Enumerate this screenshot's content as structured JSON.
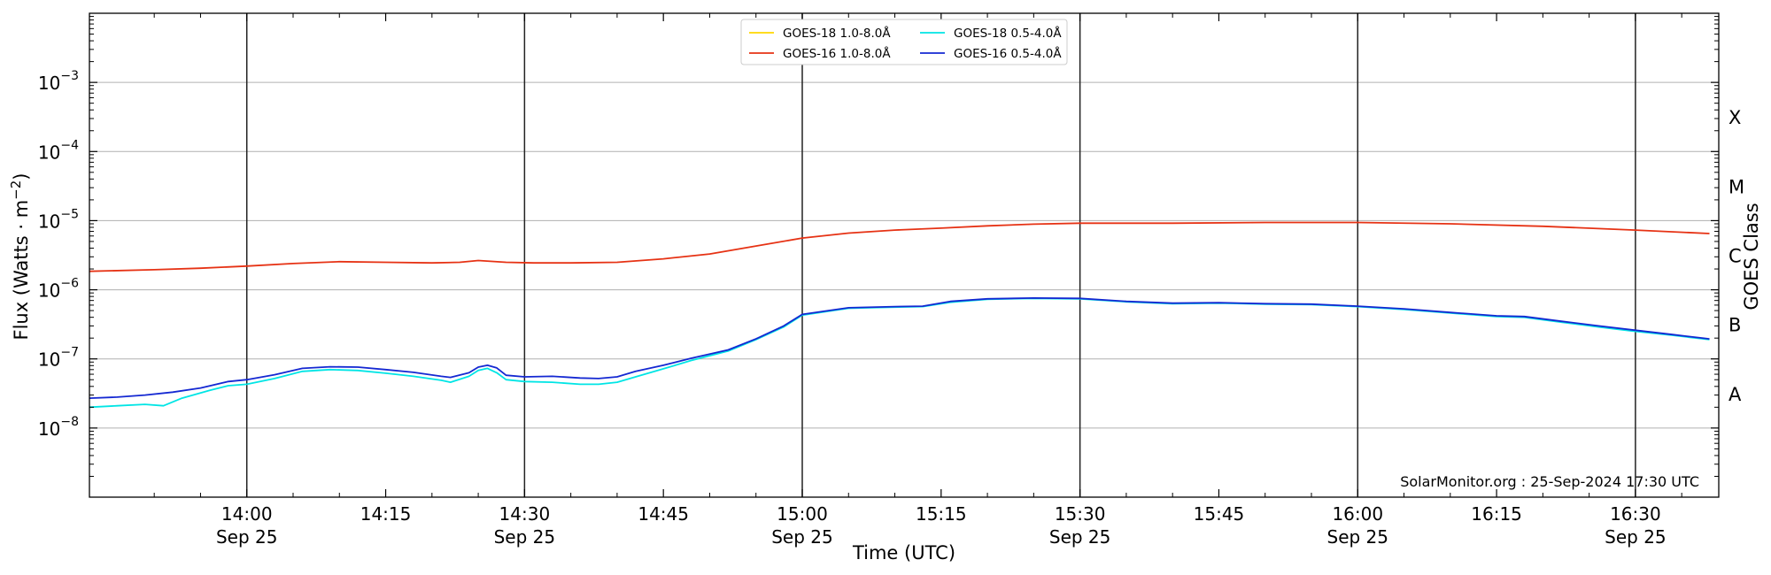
{
  "chart_data": {
    "type": "line",
    "title": "",
    "xlabel": "Time (UTC)",
    "ylabel": "Flux (Watts · m",
    "ylabel_sup": "−2",
    "ylabel_end": ")",
    "right_label": "GOES Class",
    "watermark": "SolarMonitor.org : 25-Sep-2024 17:30 UTC",
    "yscale": "log",
    "ylim": [
      1e-09,
      0.01
    ],
    "xlim_minutes_utc": [
      "13:43",
      "16:39"
    ],
    "grid": "horizontal",
    "legend_placement": "upper-center",
    "y_ticks": [
      {
        "value": 1e-08,
        "base": "10",
        "exp": "−8"
      },
      {
        "value": 1e-07,
        "base": "10",
        "exp": "−7"
      },
      {
        "value": 1e-06,
        "base": "10",
        "exp": "−6"
      },
      {
        "value": 1e-05,
        "base": "10",
        "exp": "−5"
      },
      {
        "value": 0.0001,
        "base": "10",
        "exp": "−4"
      },
      {
        "value": 0.001,
        "base": "10",
        "exp": "−3"
      }
    ],
    "x_ticks": [
      {
        "time": "14:00",
        "date": "Sep 25"
      },
      {
        "time": "14:15",
        "date": ""
      },
      {
        "time": "14:30",
        "date": "Sep 25"
      },
      {
        "time": "14:45",
        "date": ""
      },
      {
        "time": "15:00",
        "date": "Sep 25"
      },
      {
        "time": "15:15",
        "date": ""
      },
      {
        "time": "15:30",
        "date": "Sep 25"
      },
      {
        "time": "15:45",
        "date": ""
      },
      {
        "time": "16:00",
        "date": "Sep 25"
      },
      {
        "time": "16:15",
        "date": ""
      },
      {
        "time": "16:30",
        "date": "Sep 25"
      }
    ],
    "vlines": [
      "14:00",
      "14:30",
      "15:00",
      "15:30",
      "16:00",
      "16:30"
    ],
    "goes_classes": [
      {
        "label": "A",
        "value": 3.16e-08
      },
      {
        "label": "B",
        "value": 3.16e-07
      },
      {
        "label": "C",
        "value": 3.16e-06
      },
      {
        "label": "M",
        "value": 3.16e-05
      },
      {
        "label": "X",
        "value": 0.000316
      }
    ],
    "series": [
      {
        "name": "GOES-18 1.0-8.0Å",
        "color": "#ffd700",
        "legend_col": 0,
        "legend_row": 0,
        "points": []
      },
      {
        "name": "GOES-16 1.0-8.0Å",
        "color": "#e63214",
        "legend_col": 0,
        "legend_row": 1,
        "points": [
          [
            "13:43",
            1.85e-06
          ],
          [
            "13:50",
            1.95e-06
          ],
          [
            "13:55",
            2.05e-06
          ],
          [
            "14:00",
            2.2e-06
          ],
          [
            "14:05",
            2.4e-06
          ],
          [
            "14:10",
            2.55e-06
          ],
          [
            "14:15",
            2.5e-06
          ],
          [
            "14:20",
            2.45e-06
          ],
          [
            "14:23",
            2.5e-06
          ],
          [
            "14:25",
            2.65e-06
          ],
          [
            "14:28",
            2.5e-06
          ],
          [
            "14:31",
            2.45e-06
          ],
          [
            "14:35",
            2.45e-06
          ],
          [
            "14:40",
            2.5e-06
          ],
          [
            "14:45",
            2.8e-06
          ],
          [
            "14:50",
            3.3e-06
          ],
          [
            "14:55",
            4.3e-06
          ],
          [
            "15:00",
            5.6e-06
          ],
          [
            "15:05",
            6.6e-06
          ],
          [
            "15:10",
            7.3e-06
          ],
          [
            "15:15",
            7.8e-06
          ],
          [
            "15:20",
            8.4e-06
          ],
          [
            "15:25",
            8.9e-06
          ],
          [
            "15:30",
            9.2e-06
          ],
          [
            "15:40",
            9.2e-06
          ],
          [
            "15:50",
            9.4e-06
          ],
          [
            "16:00",
            9.4e-06
          ],
          [
            "16:10",
            9e-06
          ],
          [
            "16:20",
            8.3e-06
          ],
          [
            "16:30",
            7.3e-06
          ],
          [
            "16:38",
            6.5e-06
          ]
        ]
      },
      {
        "name": "GOES-18 0.5-4.0Å",
        "color": "#00e5e5",
        "legend_col": 1,
        "legend_row": 0,
        "points": [
          [
            "13:43",
            2e-08
          ],
          [
            "13:46",
            2.1e-08
          ],
          [
            "13:49",
            2.2e-08
          ],
          [
            "13:51",
            2.1e-08
          ],
          [
            "13:53",
            2.7e-08
          ],
          [
            "13:56",
            3.5e-08
          ],
          [
            "13:58",
            4.1e-08
          ],
          [
            "14:00",
            4.3e-08
          ],
          [
            "14:03",
            5.2e-08
          ],
          [
            "14:06",
            6.6e-08
          ],
          [
            "14:09",
            7e-08
          ],
          [
            "14:12",
            6.8e-08
          ],
          [
            "14:15",
            6.2e-08
          ],
          [
            "14:18",
            5.6e-08
          ],
          [
            "14:21",
            4.9e-08
          ],
          [
            "14:22",
            4.6e-08
          ],
          [
            "14:24",
            5.6e-08
          ],
          [
            "14:25",
            6.8e-08
          ],
          [
            "14:26",
            7.3e-08
          ],
          [
            "14:27",
            6.3e-08
          ],
          [
            "14:28",
            5e-08
          ],
          [
            "14:30",
            4.7e-08
          ],
          [
            "14:33",
            4.6e-08
          ],
          [
            "14:36",
            4.3e-08
          ],
          [
            "14:38",
            4.3e-08
          ],
          [
            "14:40",
            4.6e-08
          ],
          [
            "14:42",
            5.5e-08
          ],
          [
            "14:45",
            7.2e-08
          ],
          [
            "14:48",
            9.5e-08
          ],
          [
            "14:52",
            1.3e-07
          ],
          [
            "14:55",
            1.9e-07
          ],
          [
            "14:58",
            2.9e-07
          ],
          [
            "15:00",
            4.3e-07
          ],
          [
            "15:05",
            5.4e-07
          ],
          [
            "15:10",
            5.6e-07
          ],
          [
            "15:13",
            5.7e-07
          ],
          [
            "15:16",
            6.6e-07
          ],
          [
            "15:20",
            7.3e-07
          ],
          [
            "15:25",
            7.5e-07
          ],
          [
            "15:30",
            7.4e-07
          ],
          [
            "15:35",
            6.7e-07
          ],
          [
            "15:40",
            6.3e-07
          ],
          [
            "15:45",
            6.4e-07
          ],
          [
            "15:50",
            6.2e-07
          ],
          [
            "15:55",
            6.1e-07
          ],
          [
            "16:00",
            5.7e-07
          ],
          [
            "16:05",
            5.2e-07
          ],
          [
            "16:10",
            4.6e-07
          ],
          [
            "16:15",
            4.1e-07
          ],
          [
            "16:18",
            4e-07
          ],
          [
            "16:22",
            3.4e-07
          ],
          [
            "16:26",
            2.9e-07
          ],
          [
            "16:30",
            2.5e-07
          ],
          [
            "16:34",
            2.2e-07
          ],
          [
            "16:38",
            1.9e-07
          ]
        ]
      },
      {
        "name": "GOES-16 0.5-4.0Å",
        "color": "#1428d2",
        "legend_col": 1,
        "legend_row": 1,
        "points": [
          [
            "13:43",
            2.7e-08
          ],
          [
            "13:46",
            2.8e-08
          ],
          [
            "13:49",
            3e-08
          ],
          [
            "13:52",
            3.3e-08
          ],
          [
            "13:55",
            3.8e-08
          ],
          [
            "13:58",
            4.7e-08
          ],
          [
            "14:00",
            5e-08
          ],
          [
            "14:03",
            5.9e-08
          ],
          [
            "14:06",
            7.3e-08
          ],
          [
            "14:09",
            7.7e-08
          ],
          [
            "14:12",
            7.6e-08
          ],
          [
            "14:15",
            7e-08
          ],
          [
            "14:18",
            6.4e-08
          ],
          [
            "14:21",
            5.6e-08
          ],
          [
            "14:22",
            5.4e-08
          ],
          [
            "14:24",
            6.3e-08
          ],
          [
            "14:25",
            7.6e-08
          ],
          [
            "14:26",
            8.1e-08
          ],
          [
            "14:27",
            7.4e-08
          ],
          [
            "14:28",
            5.8e-08
          ],
          [
            "14:30",
            5.5e-08
          ],
          [
            "14:33",
            5.6e-08
          ],
          [
            "14:36",
            5.3e-08
          ],
          [
            "14:38",
            5.2e-08
          ],
          [
            "14:40",
            5.5e-08
          ],
          [
            "14:42",
            6.6e-08
          ],
          [
            "14:45",
            8.1e-08
          ],
          [
            "14:48",
            1.02e-07
          ],
          [
            "14:52",
            1.35e-07
          ],
          [
            "14:55",
            1.95e-07
          ],
          [
            "14:58",
            3e-07
          ],
          [
            "15:00",
            4.4e-07
          ],
          [
            "15:05",
            5.5e-07
          ],
          [
            "15:10",
            5.7e-07
          ],
          [
            "15:13",
            5.8e-07
          ],
          [
            "15:16",
            6.8e-07
          ],
          [
            "15:20",
            7.4e-07
          ],
          [
            "15:25",
            7.6e-07
          ],
          [
            "15:30",
            7.5e-07
          ],
          [
            "15:35",
            6.8e-07
          ],
          [
            "15:40",
            6.4e-07
          ],
          [
            "15:45",
            6.5e-07
          ],
          [
            "15:50",
            6.3e-07
          ],
          [
            "15:55",
            6.2e-07
          ],
          [
            "16:00",
            5.8e-07
          ],
          [
            "16:05",
            5.3e-07
          ],
          [
            "16:10",
            4.7e-07
          ],
          [
            "16:15",
            4.2e-07
          ],
          [
            "16:18",
            4.1e-07
          ],
          [
            "16:22",
            3.5e-07
          ],
          [
            "16:26",
            3e-07
          ],
          [
            "16:30",
            2.6e-07
          ],
          [
            "16:34",
            2.25e-07
          ],
          [
            "16:38",
            1.95e-07
          ]
        ]
      }
    ]
  }
}
